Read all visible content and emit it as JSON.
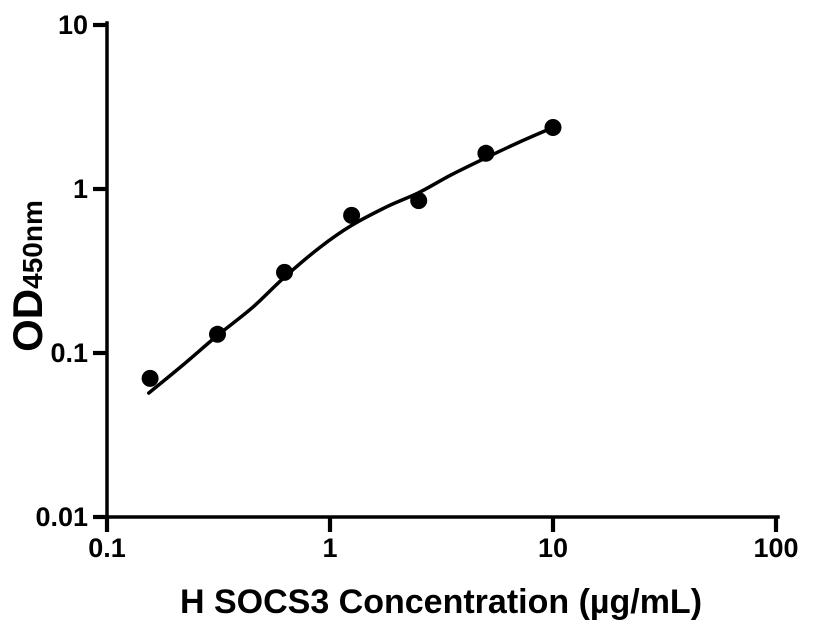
{
  "figure": {
    "background_color": "#ffffff",
    "foreground_color": "#000000"
  },
  "chart_data": {
    "type": "scatter",
    "title": "",
    "xlabel": "H SOCS3 Concentration (µg/mL)",
    "ylabel_main": "OD",
    "ylabel_sub": "450nm",
    "x_scale": "log",
    "y_scale": "log",
    "xlim": [
      0.1,
      100
    ],
    "ylim": [
      0.01,
      10
    ],
    "x_ticks": [
      0.1,
      1,
      10,
      100
    ],
    "x_tick_labels": [
      "0.1",
      "1",
      "10",
      "100"
    ],
    "y_ticks": [
      0.01,
      0.1,
      1,
      10
    ],
    "y_tick_labels": [
      "0.01",
      "0.1",
      "1",
      "10"
    ],
    "grid": false,
    "legend": false,
    "series": [
      {
        "name": "standard-points",
        "marker": "circle",
        "color": "#000000",
        "x": [
          0.156,
          0.313,
          0.625,
          1.25,
          2.5,
          5,
          10
        ],
        "y": [
          0.07,
          0.13,
          0.31,
          0.69,
          0.85,
          1.65,
          2.37
        ]
      }
    ],
    "fit_curve": {
      "name": "four-parameter-fit",
      "color": "#000000",
      "points": [
        [
          0.154,
          0.057
        ],
        [
          0.22,
          0.085
        ],
        [
          0.313,
          0.128
        ],
        [
          0.45,
          0.19
        ],
        [
          0.625,
          0.29
        ],
        [
          0.9,
          0.44
        ],
        [
          1.25,
          0.6
        ],
        [
          1.8,
          0.78
        ],
        [
          2.5,
          0.95
        ],
        [
          3.5,
          1.22
        ],
        [
          5,
          1.55
        ],
        [
          7,
          1.92
        ],
        [
          10,
          2.37
        ]
      ]
    }
  }
}
